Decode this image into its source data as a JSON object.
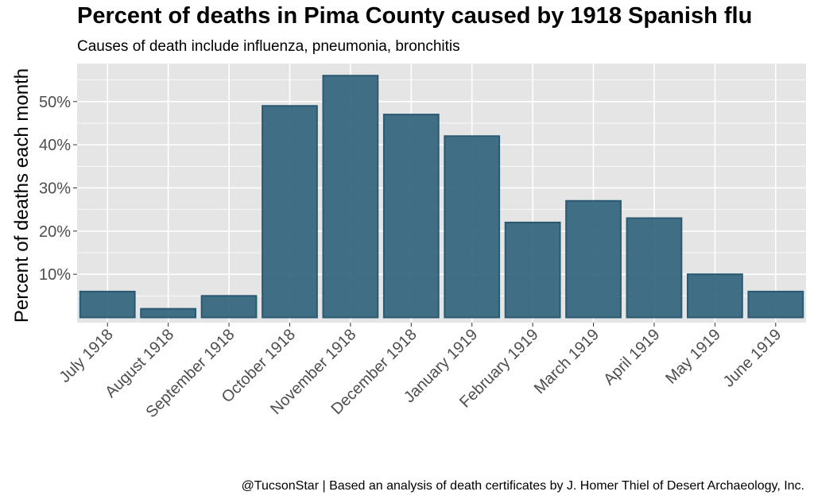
{
  "chart_data": {
    "type": "bar",
    "title": "Percent of deaths in Pima County caused by 1918 Spanish flu",
    "subtitle": "Causes of death include influenza, pneumonia, bronchitis",
    "ylabel": "Percent of deaths each month",
    "xlabel": "",
    "caption": "@TucsonStar    |    Based an analysis of death certificates by J. Homer Thiel of Desert Archaeology, Inc.",
    "categories": [
      "July 1918",
      "August 1918",
      "September 1918",
      "October 1918",
      "November 1918",
      "December 1918",
      "January 1919",
      "February 1919",
      "March 1919",
      "April 1919",
      "May 1919",
      "June 1919"
    ],
    "values": [
      6,
      2,
      5,
      49,
      56,
      47,
      42,
      22,
      27,
      23,
      10,
      6
    ],
    "yticks": [
      10,
      20,
      30,
      40,
      50
    ],
    "ytick_labels": [
      "10%",
      "20%",
      "30%",
      "40%",
      "50%"
    ],
    "ylim": [
      -1.2,
      58.8
    ],
    "grid": true,
    "bar_color": "#2e6079",
    "panel_color": "#e5e5e5",
    "grid_color": "#ffffff"
  }
}
